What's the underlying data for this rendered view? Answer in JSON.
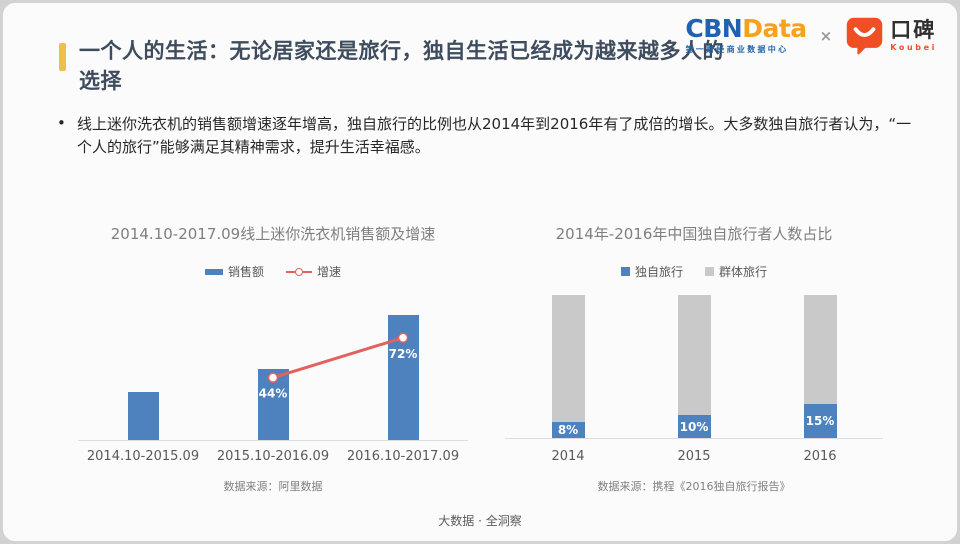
{
  "header": {
    "title": "一个人的生活：无论居家还是旅行，独自生活已经成为越来越多人的选择",
    "logos": {
      "cbn": "CBN",
      "data": "Data",
      "cbn_subtitle": "第一财经商业数据中心",
      "separator": "×",
      "koubei_cn": "口碑",
      "koubei_en": "Koubei"
    }
  },
  "intro": {
    "bullet": "•",
    "text": "线上迷你洗衣机的销售额增速逐年增高，独自旅行的比例也从2014年到2016年有了成倍的增长。大多数独自旅行者认为，“一个人的旅行”能够满足其精神需求，提升生活幸福感。"
  },
  "colors": {
    "accent_yellow": "#eec04a",
    "title_text": "#3e4c5e",
    "bar_blue": "#4d82be",
    "line_red": "#e2625d",
    "bar_gray": "#c9c9c9",
    "cbn_blue": "#2062ae",
    "cbn_orange": "#f6a21d",
    "koubei_orange": "#f04f23"
  },
  "chart_data": [
    {
      "id": "sales",
      "type": "bar",
      "title": "2014.10-2017.09线上迷你洗衣机销售额及增速",
      "categories": [
        "2014.10-2015.09",
        "2015.10-2016.09",
        "2016.10-2017.09"
      ],
      "legend_position": "top",
      "grid": false,
      "value_axis_shown": false,
      "series": [
        {
          "name": "销售额",
          "type": "bar",
          "color": "#4d82be",
          "note": "no numeric labels shown; bar heights relative to plot height",
          "heights_rel": [
            0.33,
            0.49,
            0.86
          ]
        },
        {
          "name": "增速",
          "type": "line",
          "color": "#e2625d",
          "values_pct": [
            null,
            44,
            72
          ],
          "labels": [
            null,
            "44%",
            "72%"
          ],
          "points_rel": [
            null,
            0.43,
            0.705
          ]
        }
      ],
      "source": "数据来源：阿里数据"
    },
    {
      "id": "solo",
      "type": "bar",
      "stacked": true,
      "title": "2014年-2016年中国独自旅行者人数占比",
      "categories": [
        "2014",
        "2015",
        "2016"
      ],
      "legend_position": "top",
      "grid": false,
      "value_axis_shown": false,
      "series": [
        {
          "name": "独自旅行",
          "color": "#4d82be",
          "values_pct": [
            8,
            10,
            15
          ],
          "labels": [
            "8%",
            "10%",
            "15%"
          ],
          "display_frac": [
            0.113,
            0.16,
            0.237
          ]
        },
        {
          "name": "群体旅行",
          "color": "#c9c9c9",
          "values_pct": [
            92,
            90,
            85
          ],
          "labels": [
            null,
            null,
            null
          ]
        }
      ],
      "source": "数据来源：携程《2016独自旅行报告》"
    }
  ],
  "footer": {
    "text": "大数据 · 全洞察"
  }
}
